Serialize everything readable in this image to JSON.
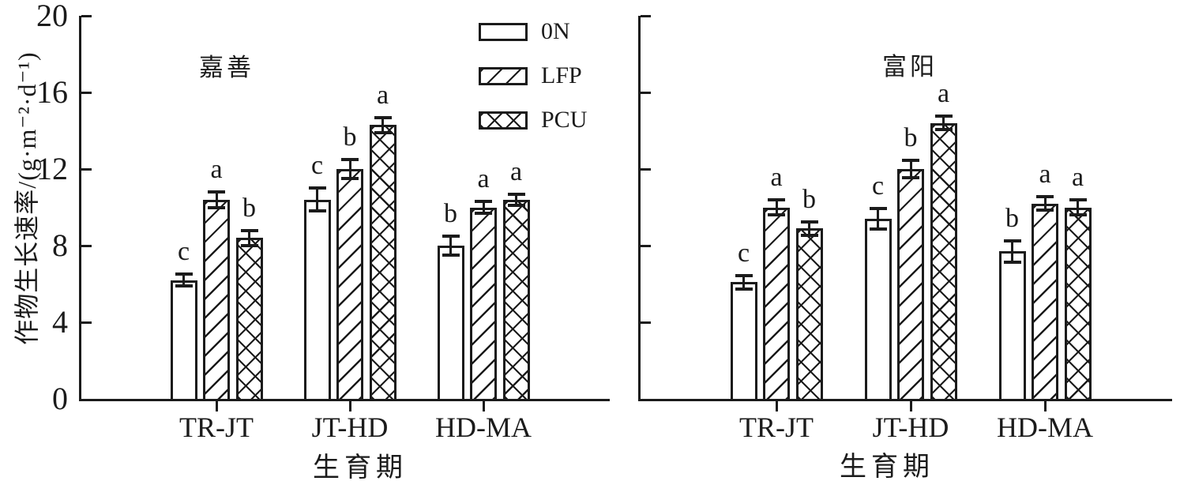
{
  "figure": {
    "description_units": "g·m⁻²·d⁻¹",
    "colors": {
      "ink": "#1b1b1b",
      "background": "#ffffff"
    }
  },
  "legend": {
    "position": "top-center-left-panel",
    "items": [
      {
        "label": "0N",
        "pattern": "plain"
      },
      {
        "label": "LFP",
        "pattern": "diagonal"
      },
      {
        "label": "PCU",
        "pattern": "crosshatch"
      }
    ]
  },
  "chart_data": [
    {
      "type": "bar",
      "panel": "left",
      "title": "嘉善",
      "xlabel": "生育期",
      "ylabel": "作物生长速率/(g·m⁻²·d⁻¹)",
      "ylim": [
        0,
        20
      ],
      "yticks": [
        0,
        4,
        8,
        12,
        16,
        20
      ],
      "show_ytick_labels": true,
      "grid": false,
      "categories": [
        "TR-JT",
        "JT-HD",
        "HD-MA"
      ],
      "series": [
        {
          "name": "0N",
          "pattern": "plain",
          "values": [
            6.2,
            10.4,
            8.0
          ],
          "errors": [
            0.3,
            0.6,
            0.5
          ],
          "sig_letters": [
            "c",
            "c",
            "b"
          ]
        },
        {
          "name": "LFP",
          "pattern": "diagonal",
          "values": [
            10.4,
            12.0,
            10.0
          ],
          "errors": [
            0.4,
            0.5,
            0.3
          ],
          "sig_letters": [
            "a",
            "b",
            "a"
          ]
        },
        {
          "name": "PCU",
          "pattern": "crosshatch",
          "values": [
            8.4,
            14.3,
            10.4
          ],
          "errors": [
            0.4,
            0.4,
            0.3
          ],
          "sig_letters": [
            "b",
            "a",
            "a"
          ]
        }
      ]
    },
    {
      "type": "bar",
      "panel": "right",
      "title": "富阳",
      "xlabel": "生育期",
      "ylabel": "",
      "ylim": [
        0,
        20
      ],
      "yticks": [
        0,
        4,
        8,
        12,
        16,
        20
      ],
      "show_ytick_labels": false,
      "grid": false,
      "categories": [
        "TR-JT",
        "JT-HD",
        "HD-MA"
      ],
      "series": [
        {
          "name": "0N",
          "pattern": "plain",
          "values": [
            6.1,
            9.4,
            7.7
          ],
          "errors": [
            0.35,
            0.55,
            0.55
          ],
          "sig_letters": [
            "c",
            "c",
            "b"
          ]
        },
        {
          "name": "LFP",
          "pattern": "diagonal",
          "values": [
            10.0,
            12.0,
            10.2
          ],
          "errors": [
            0.4,
            0.45,
            0.35
          ],
          "sig_letters": [
            "a",
            "b",
            "a"
          ]
        },
        {
          "name": "PCU",
          "pattern": "crosshatch",
          "values": [
            8.9,
            14.4,
            10.0
          ],
          "errors": [
            0.35,
            0.35,
            0.4
          ],
          "sig_letters": [
            "b",
            "a",
            "a"
          ]
        }
      ]
    }
  ]
}
